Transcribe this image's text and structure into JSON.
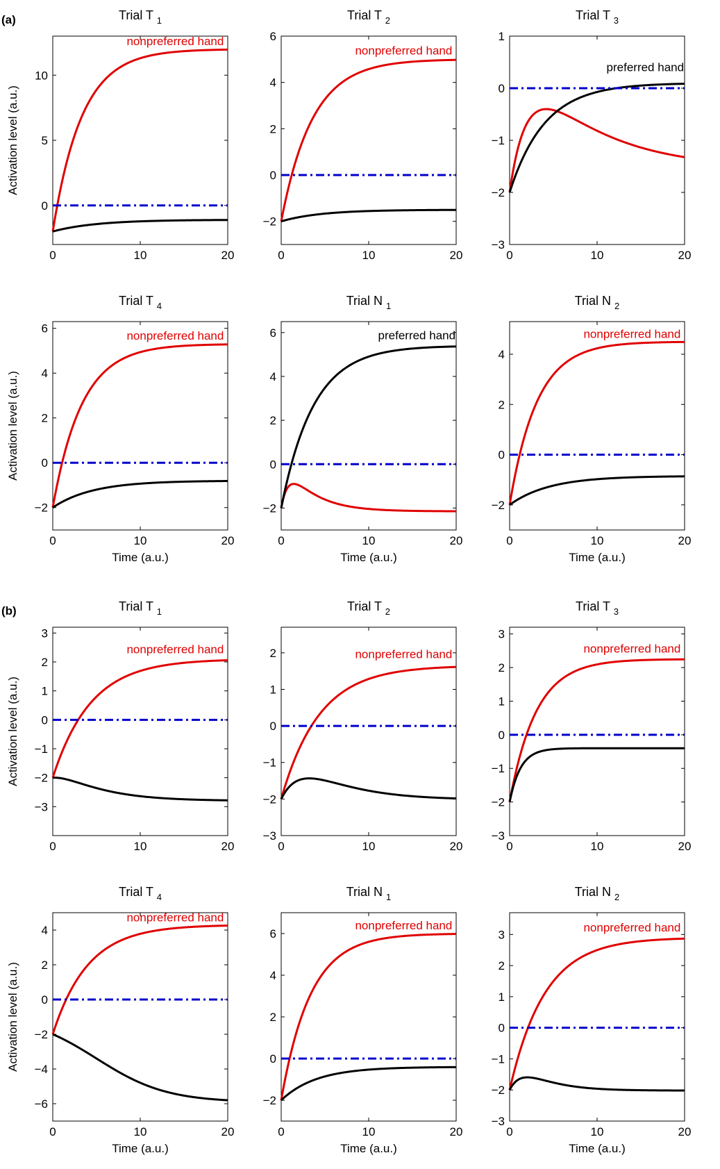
{
  "panel_labels": [
    "(a)",
    "(b)"
  ],
  "colors": {
    "red": "#e00000",
    "black": "#000000",
    "blue": "#0000cc"
  },
  "chart_data": [
    {
      "type": "line",
      "panel": "(a)",
      "title": "Trial T",
      "sub": "1",
      "xlabel": "",
      "ylabel": "Activation level (a.u.)",
      "xlim": [
        0,
        20
      ],
      "ylim": [
        -3,
        13
      ],
      "xticks": [
        0,
        10,
        20
      ],
      "yticks": [
        0,
        5,
        10
      ],
      "series": [
        {
          "color": "red",
          "start": -2,
          "end": 12,
          "rate": 0.3
        },
        {
          "color": "black",
          "start": -2,
          "end": -1.1,
          "rate": 0.2
        },
        {
          "color": "blue",
          "dashed": true,
          "value": 0
        }
      ],
      "annotation": {
        "text": "nonpreferred hand",
        "color": "red",
        "x": 14,
        "y": 12.3
      }
    },
    {
      "type": "line",
      "panel": "(a)",
      "title": "Trial T",
      "sub": "2",
      "xlabel": "",
      "ylabel": "",
      "xlim": [
        0,
        20
      ],
      "ylim": [
        -3,
        6
      ],
      "xticks": [
        0,
        10,
        20
      ],
      "yticks": [
        -2,
        0,
        2,
        4,
        6
      ],
      "series": [
        {
          "color": "red",
          "start": -2,
          "end": 5,
          "rate": 0.28
        },
        {
          "color": "black",
          "start": -2,
          "end": -1.5,
          "rate": 0.22
        },
        {
          "color": "blue",
          "dashed": true,
          "value": 0
        }
      ],
      "annotation": {
        "text": "nonpreferred hand",
        "color": "red",
        "x": 14,
        "y": 5.2
      }
    },
    {
      "type": "line",
      "panel": "(a)",
      "title": "Trial T",
      "sub": "3",
      "xlabel": "",
      "ylabel": "",
      "xlim": [
        0,
        20
      ],
      "ylim": [
        -3,
        1
      ],
      "xticks": [
        0,
        10,
        20
      ],
      "yticks": [
        -3,
        -2,
        -1,
        0,
        1
      ],
      "series": [
        {
          "color": "red",
          "start": -2,
          "end": -1.55,
          "rate": 0.5,
          "bump": 2.5,
          "bumpDecay": 0.12
        },
        {
          "color": "black",
          "start": -2,
          "end": 0.1,
          "rate": 0.25
        },
        {
          "color": "blue",
          "dashed": true,
          "value": 0
        }
      ],
      "annotation": {
        "text": "preferred hand",
        "color": "black",
        "x": 15.5,
        "y": 0.33
      }
    },
    {
      "type": "line",
      "panel": "(a)",
      "title": "Trial T",
      "sub": "4",
      "xlabel": "Time (a.u.)",
      "ylabel": "Activation level (a.u.)",
      "xlim": [
        0,
        20
      ],
      "ylim": [
        -3,
        6.3
      ],
      "xticks": [
        0,
        10,
        20
      ],
      "yticks": [
        -2,
        0,
        2,
        4,
        6
      ],
      "series": [
        {
          "color": "red",
          "start": -2,
          "end": 5.3,
          "rate": 0.3
        },
        {
          "color": "black",
          "start": -2,
          "end": -0.8,
          "rate": 0.22
        },
        {
          "color": "blue",
          "dashed": true,
          "value": 0
        }
      ],
      "annotation": {
        "text": "nonpreferred hand",
        "color": "red",
        "x": 14,
        "y": 5.5
      }
    },
    {
      "type": "line",
      "panel": "(a)",
      "title": "Trial N",
      "sub": "1",
      "xlabel": "Time (a.u.)",
      "ylabel": "",
      "xlim": [
        0,
        20
      ],
      "ylim": [
        -3,
        6.5
      ],
      "xticks": [
        0,
        10,
        20
      ],
      "yticks": [
        -2,
        0,
        2,
        4,
        6
      ],
      "series": [
        {
          "color": "red",
          "start": -2,
          "end": -2.15,
          "rate": 1.2,
          "bump": 2.7,
          "bumpDecay": 0.32
        },
        {
          "color": "black",
          "start": -2,
          "end": 5.4,
          "rate": 0.27
        },
        {
          "color": "blue",
          "dashed": true,
          "value": 0
        }
      ],
      "annotation": {
        "text": "preferred hand",
        "color": "black",
        "x": 15.5,
        "y": 5.7
      }
    },
    {
      "type": "line",
      "panel": "(a)",
      "title": "Trial N",
      "sub": "2",
      "xlabel": "Time (a.u.)",
      "ylabel": "",
      "xlim": [
        0,
        20
      ],
      "ylim": [
        -3,
        5.3
      ],
      "xticks": [
        0,
        10,
        20
      ],
      "yticks": [
        -2,
        0,
        2,
        4
      ],
      "series": [
        {
          "color": "red",
          "start": -2,
          "end": 4.5,
          "rate": 0.32
        },
        {
          "color": "black",
          "start": -2,
          "end": -0.85,
          "rate": 0.22
        },
        {
          "color": "blue",
          "dashed": true,
          "value": 0
        }
      ],
      "annotation": {
        "text": "nonpreferred hand",
        "color": "red",
        "x": 14,
        "y": 4.65
      }
    },
    {
      "type": "line",
      "panel": "(b)",
      "title": "Trial T",
      "sub": "1",
      "xlabel": "",
      "ylabel": "Activation level (a.u.)",
      "xlim": [
        0,
        20
      ],
      "ylim": [
        -4,
        3.2
      ],
      "xticks": [
        0,
        10,
        20
      ],
      "yticks": [
        -3,
        -2,
        -1,
        0,
        1,
        2,
        3
      ],
      "series": [
        {
          "color": "red",
          "start": -2,
          "end": 2.1,
          "rate": 0.23
        },
        {
          "color": "black",
          "start": -2,
          "end": -2.8,
          "rate": 0.5,
          "bump": 1.5,
          "bumpDecay": 0.22
        },
        {
          "color": "blue",
          "dashed": true,
          "value": 0
        }
      ],
      "annotation": {
        "text": "nonpreferred hand",
        "color": "red",
        "x": 14,
        "y": 2.3
      }
    },
    {
      "type": "line",
      "panel": "(b)",
      "title": "Trial T",
      "sub": "2",
      "xlabel": "",
      "ylabel": "",
      "xlim": [
        0,
        20
      ],
      "ylim": [
        -3,
        2.7
      ],
      "xticks": [
        0,
        10,
        20
      ],
      "yticks": [
        -3,
        -2,
        -1,
        0,
        1,
        2
      ],
      "series": [
        {
          "color": "red",
          "start": -2,
          "end": 1.65,
          "rate": 0.23
        },
        {
          "color": "black",
          "start": -2,
          "end": -2.02,
          "rate": 0.45,
          "bump": 2.0,
          "bumpDecay": 0.2
        },
        {
          "color": "blue",
          "dashed": true,
          "value": 0
        }
      ],
      "annotation": {
        "text": "nonpreferred hand",
        "color": "red",
        "x": 14,
        "y": 1.85
      }
    },
    {
      "type": "line",
      "panel": "(b)",
      "title": "Trial T",
      "sub": "3",
      "xlabel": "",
      "ylabel": "",
      "xlim": [
        0,
        20
      ],
      "ylim": [
        -3,
        3.2
      ],
      "xticks": [
        0,
        10,
        20
      ],
      "yticks": [
        -3,
        -2,
        -1,
        0,
        1,
        2,
        3
      ],
      "series": [
        {
          "color": "red",
          "start": -2,
          "end": 2.25,
          "rate": 0.33
        },
        {
          "color": "black",
          "start": -2,
          "end": -0.4,
          "rate": 0.8
        },
        {
          "color": "blue",
          "dashed": true,
          "value": 0
        }
      ],
      "annotation": {
        "text": "nonpreferred hand",
        "color": "red",
        "x": 14,
        "y": 2.45
      }
    },
    {
      "type": "line",
      "panel": "(b)",
      "title": "Trial T",
      "sub": "4",
      "xlabel": "Time (a.u.)",
      "ylabel": "Activation level (a.u.)",
      "xlim": [
        0,
        20
      ],
      "ylim": [
        -7,
        5
      ],
      "xticks": [
        0,
        10,
        20
      ],
      "yticks": [
        -6,
        -4,
        -2,
        0,
        2,
        4
      ],
      "series": [
        {
          "color": "red",
          "start": -2,
          "end": 4.3,
          "rate": 0.25
        },
        {
          "color": "black",
          "start": -2,
          "end": -5.8,
          "rate": 0.25,
          "sigmoid": true
        },
        {
          "color": "blue",
          "dashed": true,
          "value": 0
        }
      ],
      "annotation": {
        "text": "nonpreferred hand",
        "color": "red",
        "x": 14,
        "y": 4.5
      }
    },
    {
      "type": "line",
      "panel": "(b)",
      "title": "Trial N",
      "sub": "1",
      "xlabel": "Time (a.u.)",
      "ylabel": "",
      "xlim": [
        0,
        20
      ],
      "ylim": [
        -3,
        7
      ],
      "xticks": [
        0,
        10,
        20
      ],
      "yticks": [
        -2,
        0,
        2,
        4,
        6
      ],
      "series": [
        {
          "color": "red",
          "start": -2,
          "end": 6,
          "rate": 0.3
        },
        {
          "color": "black",
          "start": -2,
          "end": -0.4,
          "rate": 0.25
        },
        {
          "color": "blue",
          "dashed": true,
          "value": 0
        }
      ],
      "annotation": {
        "text": "nonpreferred hand",
        "color": "red",
        "x": 14,
        "y": 6.2
      }
    },
    {
      "type": "line",
      "panel": "(b)",
      "title": "Trial N",
      "sub": "2",
      "xlabel": "Time (a.u.)",
      "ylabel": "",
      "xlim": [
        0,
        20
      ],
      "ylim": [
        -3,
        3.7
      ],
      "xticks": [
        0,
        10,
        20
      ],
      "yticks": [
        -3,
        -2,
        -1,
        0,
        1,
        2,
        3
      ],
      "series": [
        {
          "color": "red",
          "start": -2,
          "end": 2.9,
          "rate": 0.25
        },
        {
          "color": "black",
          "start": -2,
          "end": -2.02,
          "rate": 0.7,
          "bump": 1.5,
          "bumpDecay": 0.32
        },
        {
          "color": "blue",
          "dashed": true,
          "value": 0
        }
      ],
      "annotation": {
        "text": "nonpreferred hand",
        "color": "red",
        "x": 14,
        "y": 3.1
      }
    }
  ]
}
